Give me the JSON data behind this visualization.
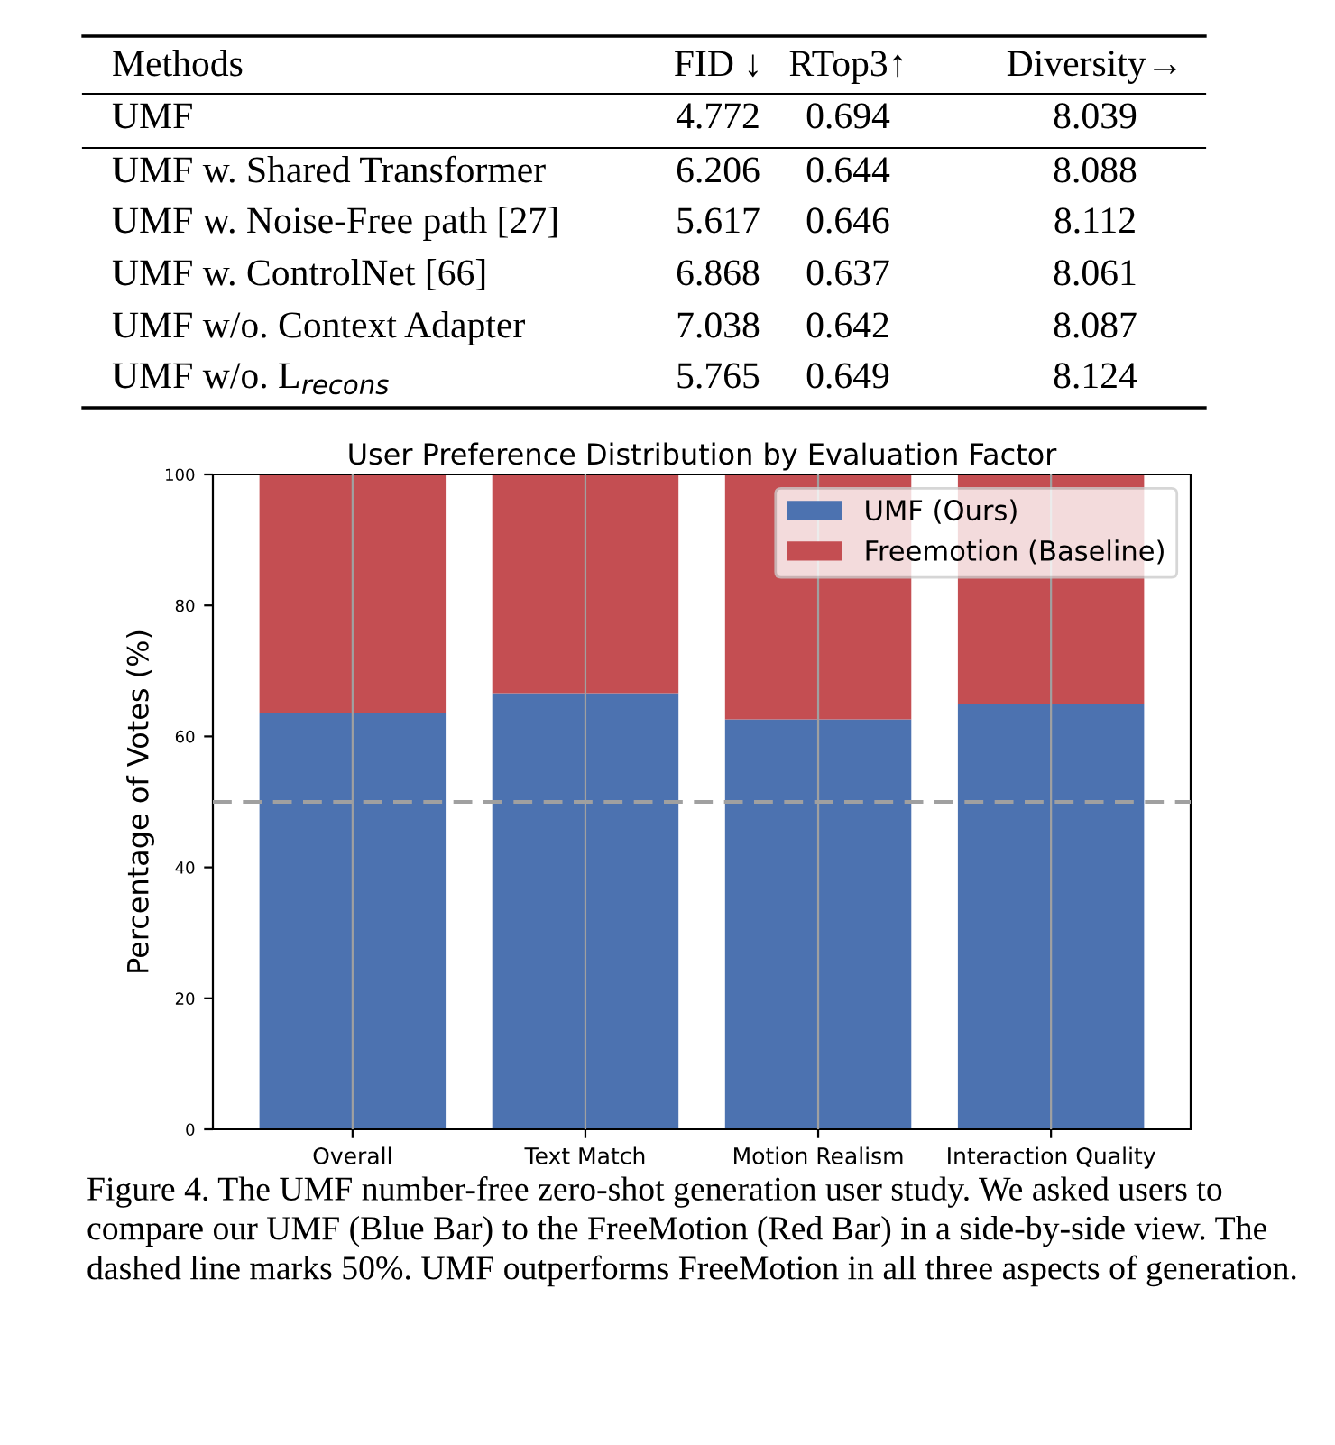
{
  "chart_data": [
    {
      "type": "other",
      "categories": [
        "Methods",
        "FID ↓",
        "RTop3↑",
        "Diversity→"
      ],
      "y_categories": [
        "UMF",
        "UMF w. Shared Transformer",
        "UMF w. Noise-Free path [27]",
        "UMF w. ControlNet [66]",
        "UMF w/o. Context Adapter",
        "UMF w/o. L$_{recons}$"
      ],
      "cell_labels": [
        [
          "4.772",
          "0.694",
          "8.039"
        ],
        [
          "6.206",
          "0.644",
          "8.088"
        ],
        [
          "5.617",
          "0.646",
          "8.112"
        ],
        [
          "6.868",
          "0.637",
          "8.061"
        ],
        [
          "7.038",
          "0.642",
          "8.087"
        ],
        [
          "5.765",
          "0.649",
          "8.124"
        ]
      ]
    },
    {
      "type": "bar",
      "stacked": true,
      "title": "User Preference Distribution by Evaluation Factor",
      "ylabel": "Percentage of Votes (%)",
      "categories": [
        "Overall",
        "Text Match",
        "Motion Realism",
        "Interaction Quality"
      ],
      "series": [
        {
          "name": "UMF (Ours)",
          "color": "#4c72b0",
          "values": [
            63.5,
            66.6,
            62.6,
            64.9
          ]
        },
        {
          "name": "Freemotion (Baseline)",
          "color": "#c44e52",
          "values": [
            36.5,
            33.4,
            37.4,
            35.1
          ]
        }
      ],
      "ylim": [
        0,
        100
      ],
      "yticks": [
        0,
        20,
        40,
        60,
        80,
        100
      ],
      "grid": "x",
      "legend": "top right",
      "ref_lines": [
        {
          "axis": "y",
          "value": 50,
          "color": "#a0a0a0",
          "line_style": "dashed"
        }
      ],
      "annotations": [
        "Figure 4. The UMF number-free zero-shot generation user study. We asked users to compare our UMF (Blue Bar) to the FreeMotion (Red Bar) in a side-by-side view. The dashed line marks 50%. UMF outperforms FreeMotion in all three aspects of generation."
      ]
    }
  ]
}
